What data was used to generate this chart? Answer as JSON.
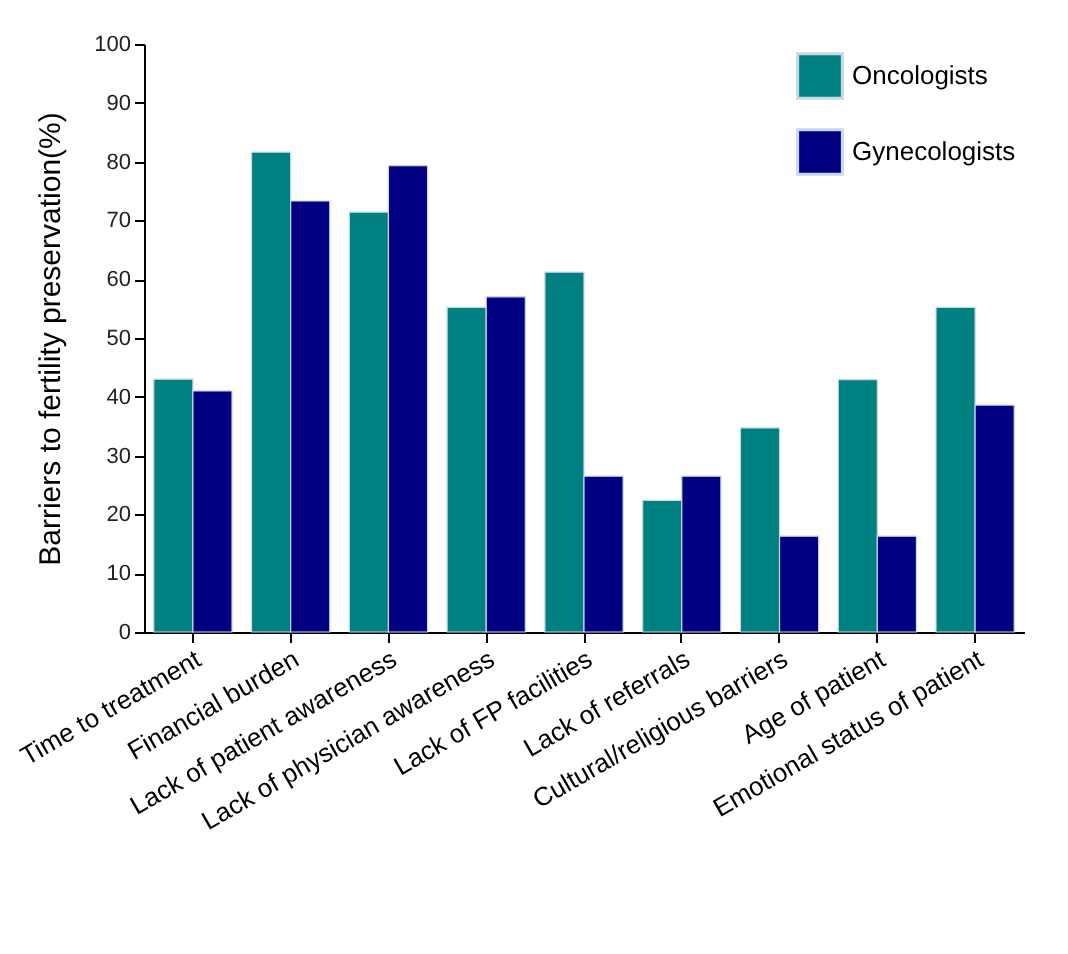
{
  "chart_data": {
    "type": "bar",
    "ylabel": "Barriers to fertility preservation(%)",
    "categories": [
      "Time to treatment",
      "Financial burden",
      "Lack of patient awareness",
      "Lack of physician awareness",
      "Lack of FP facilities",
      "Lack of referrals",
      "Cultural/religious barriers",
      "Age of patient",
      "Emotional status of patient"
    ],
    "series": [
      {
        "name": "Oncologists",
        "color": "#008080",
        "values": [
          43,
          81.6,
          71.4,
          55.2,
          61.2,
          22.4,
          34.7,
          42.9,
          55.2
        ]
      },
      {
        "name": "Gynecologists",
        "color": "#000080",
        "values": [
          41,
          73.3,
          79.3,
          57,
          26.5,
          26.5,
          16.3,
          16.3,
          38.6
        ]
      }
    ],
    "ylim": [
      0,
      100
    ],
    "yticks": [
      0,
      10,
      20,
      30,
      40,
      50,
      60,
      70,
      80,
      90,
      100
    ],
    "grid": false,
    "legend": "top right"
  }
}
